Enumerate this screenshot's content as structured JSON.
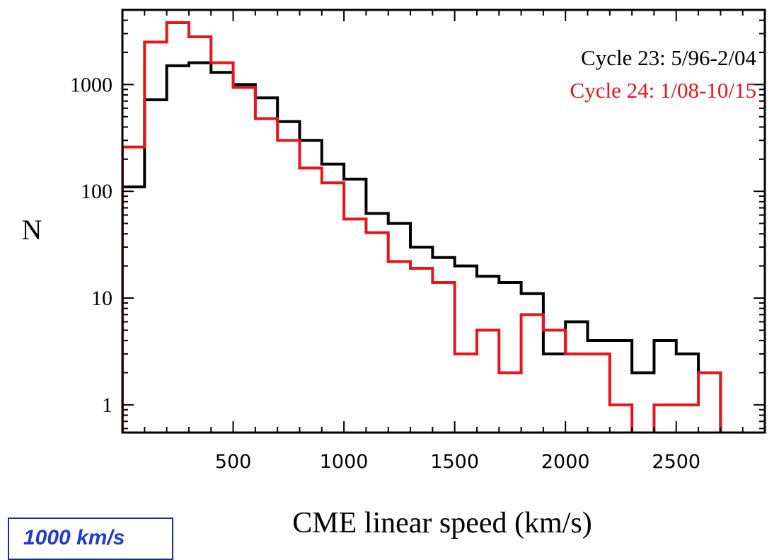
{
  "chart_data": {
    "type": "histogram-step",
    "xlabel": "CME linear speed (km/s)",
    "ylabel": "N",
    "y_scale": "log",
    "xlim": [
      0,
      2900
    ],
    "ylim": [
      0.55,
      5000
    ],
    "x_ticks": [
      500,
      1000,
      1500,
      2000,
      2500
    ],
    "x_tick_labels": [
      "500",
      "1000",
      "1500",
      "2000",
      "2500"
    ],
    "y_ticks": [
      1,
      10,
      100,
      1000
    ],
    "y_tick_labels": [
      "1",
      "10",
      "100",
      "1000"
    ],
    "legend_position": "top-right",
    "bin_edges": [
      0,
      100,
      200,
      300,
      400,
      500,
      600,
      700,
      800,
      900,
      1000,
      1100,
      1200,
      1300,
      1400,
      1500,
      1600,
      1700,
      1800,
      1900,
      2000,
      2100,
      2200,
      2300,
      2400,
      2500,
      2600,
      2700
    ],
    "series": [
      {
        "name": "Cycle 23: 5/96-2/04",
        "color": "#000000",
        "values": [
          110,
          720,
          1500,
          1600,
          1300,
          1000,
          750,
          450,
          300,
          180,
          130,
          62,
          50,
          30,
          24,
          20,
          16,
          14,
          11,
          3,
          6,
          4,
          4,
          2,
          4,
          3,
          2
        ]
      },
      {
        "name": "Cycle 24: 1/08-10/15",
        "color": "#e8141c",
        "values": [
          260,
          2500,
          3800,
          2800,
          1600,
          940,
          480,
          300,
          165,
          120,
          55,
          41,
          22,
          19,
          14,
          3,
          5,
          2,
          7,
          5,
          3,
          3,
          1,
          0,
          1,
          1,
          2
        ]
      }
    ]
  },
  "inset": {
    "text": "1000 km/s"
  }
}
